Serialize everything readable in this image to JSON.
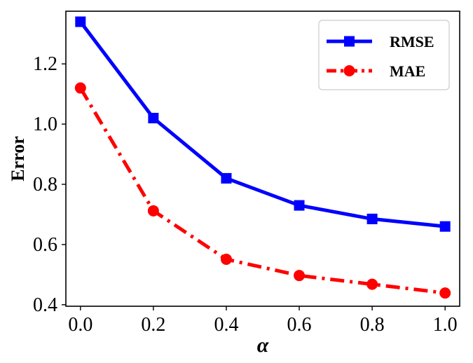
{
  "chart_data": {
    "type": "line",
    "x": [
      0.0,
      0.2,
      0.4,
      0.6,
      0.8,
      1.0
    ],
    "series": [
      {
        "name": "RMSE",
        "values": [
          1.34,
          1.02,
          0.82,
          0.73,
          0.685,
          0.66
        ],
        "color": "#0000ff",
        "marker": "square",
        "line_style": "solid"
      },
      {
        "name": "MAE",
        "values": [
          1.12,
          0.712,
          0.551,
          0.497,
          0.468,
          0.439
        ],
        "color": "#ff0000",
        "marker": "circle",
        "line_style": "dash-dot"
      }
    ],
    "xlabel": "α",
    "ylabel": "Error",
    "xlim": [
      -0.04,
      1.04
    ],
    "ylim": [
      0.395,
      1.375
    ],
    "xticks": [
      "0.0",
      "0.2",
      "0.4",
      "0.6",
      "0.8",
      "1.0"
    ],
    "yticks": [
      "0.4",
      "0.6",
      "0.8",
      "1.0",
      "1.2"
    ],
    "xtick_values": [
      0.0,
      0.2,
      0.4,
      0.6,
      0.8,
      1.0
    ],
    "ytick_values": [
      0.4,
      0.6,
      0.8,
      1.0,
      1.2
    ],
    "grid": false,
    "legend_position": "top-right"
  }
}
